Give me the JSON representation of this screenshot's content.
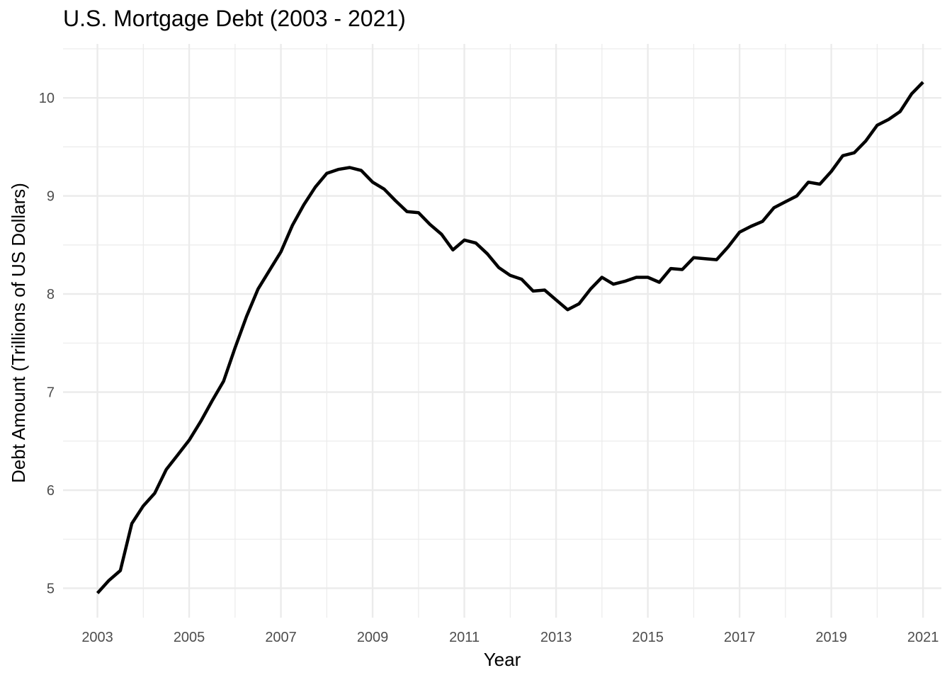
{
  "chart_data": {
    "type": "line",
    "title": "U.S. Mortgage Debt (2003 - 2021)",
    "xlabel": "Year",
    "ylabel": "Debt Amount (Trillions of US Dollars)",
    "xlim": [
      2002.25,
      2021.4
    ],
    "ylim": [
      4.7,
      10.55
    ],
    "x_ticks": [
      2003,
      2005,
      2007,
      2009,
      2011,
      2013,
      2015,
      2017,
      2019,
      2021
    ],
    "x_tick_labels": [
      "2003",
      "2005",
      "2007",
      "2009",
      "2011",
      "2013",
      "2015",
      "2017",
      "2019",
      "2021"
    ],
    "y_ticks": [
      5,
      6,
      7,
      8,
      9,
      10
    ],
    "y_tick_labels": [
      "5",
      "6",
      "7",
      "8",
      "9",
      "10"
    ],
    "grid": true,
    "line_color": "#000000",
    "grid_color": "#ebebeb",
    "series": [
      {
        "x": [
          2003.0,
          2003.25,
          2003.5,
          2003.75,
          2004.0,
          2004.25,
          2004.5,
          2004.75,
          2005.0,
          2005.25,
          2005.5,
          2005.75,
          2006.0,
          2006.25,
          2006.5,
          2006.75,
          2007.0,
          2007.25,
          2007.5,
          2007.75,
          2008.0,
          2008.25,
          2008.5,
          2008.75,
          2009.0,
          2009.25,
          2009.5,
          2009.75,
          2010.0,
          2010.25,
          2010.5,
          2010.75,
          2011.0,
          2011.25,
          2011.5,
          2011.75,
          2012.0,
          2012.25,
          2012.5,
          2012.75,
          2013.0,
          2013.25,
          2013.5,
          2013.75,
          2014.0,
          2014.25,
          2014.5,
          2014.75,
          2015.0,
          2015.25,
          2015.5,
          2015.75,
          2016.0,
          2016.25,
          2016.5,
          2016.75,
          2017.0,
          2017.25,
          2017.5,
          2017.75,
          2018.0,
          2018.25,
          2018.5,
          2018.75,
          2019.0,
          2019.25,
          2019.5,
          2019.75,
          2020.0,
          2020.25,
          2020.5,
          2020.75,
          2021.0
        ],
        "values": [
          4.95,
          5.08,
          5.18,
          5.66,
          5.84,
          5.97,
          6.21,
          6.36,
          6.51,
          6.7,
          6.91,
          7.11,
          7.45,
          7.77,
          8.05,
          8.24,
          8.43,
          8.7,
          8.91,
          9.09,
          9.23,
          9.27,
          9.29,
          9.26,
          9.14,
          9.07,
          8.95,
          8.84,
          8.83,
          8.71,
          8.61,
          8.45,
          8.55,
          8.52,
          8.41,
          8.27,
          8.19,
          8.15,
          8.03,
          8.04,
          7.94,
          7.84,
          7.9,
          8.05,
          8.17,
          8.1,
          8.13,
          8.17,
          8.17,
          8.12,
          8.26,
          8.25,
          8.37,
          8.36,
          8.35,
          8.48,
          8.63,
          8.69,
          8.74,
          8.88,
          8.94,
          9.0,
          9.14,
          9.12,
          9.25,
          9.41,
          9.44,
          9.56,
          9.72,
          9.78,
          9.86,
          10.04,
          10.16
        ]
      }
    ]
  }
}
